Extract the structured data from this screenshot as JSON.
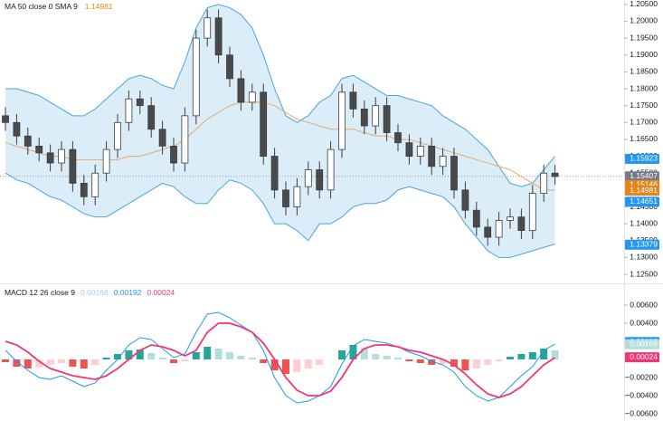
{
  "chart_data": [
    {
      "type": "candlestick",
      "legend_label": "MA 50 close 0 SMA 9",
      "legend_value": "1.14981",
      "legend_value_color": "#e0861c",
      "ylim": [
        1.1226,
        1.2063
      ],
      "yticks": [
        {
          "value": 1.205,
          "label": "1.20500"
        },
        {
          "value": 1.2,
          "label": "1.20000"
        },
        {
          "value": 1.195,
          "label": "1.19500"
        },
        {
          "value": 1.19,
          "label": "1.19000"
        },
        {
          "value": 1.185,
          "label": "1.18500"
        },
        {
          "value": 1.18,
          "label": "1.18000"
        },
        {
          "value": 1.175,
          "label": "1.17500"
        },
        {
          "value": 1.17,
          "label": "1.17000"
        },
        {
          "value": 1.165,
          "label": "1.16500"
        },
        {
          "value": 1.16,
          "label": "1.16000"
        },
        {
          "value": 1.155,
          "label": "1.15500"
        },
        {
          "value": 1.15,
          "label": "1.15000"
        },
        {
          "value": 1.145,
          "label": "1.14500"
        },
        {
          "value": 1.14,
          "label": "1.14000"
        },
        {
          "value": 1.135,
          "label": "1.13500"
        },
        {
          "value": 1.13,
          "label": "1.13000"
        },
        {
          "value": 1.125,
          "label": "1.12500"
        }
      ],
      "open": [
        1.172,
        1.17,
        1.166,
        1.163,
        1.161,
        1.158,
        1.162,
        1.152,
        1.148,
        1.155,
        1.162,
        1.17,
        1.177,
        1.175,
        1.168,
        1.163,
        1.158,
        1.172,
        1.195,
        1.201,
        1.19,
        1.183,
        1.176,
        1.179,
        1.16,
        1.15,
        1.145,
        1.151,
        1.156,
        1.15,
        1.162,
        1.179,
        1.174,
        1.169,
        1.175,
        1.167,
        1.164,
        1.16,
        1.163,
        1.157,
        1.16,
        1.15,
        1.144,
        1.139,
        1.136,
        1.141,
        1.142,
        1.138,
        1.149,
        1.155
      ],
      "high": [
        1.1745,
        1.1725,
        1.1685,
        1.1655,
        1.1635,
        1.1645,
        1.1645,
        1.1545,
        1.1575,
        1.1645,
        1.1725,
        1.1795,
        1.1795,
        1.1775,
        1.1705,
        1.1655,
        1.1745,
        1.1975,
        1.2035,
        1.2035,
        1.1925,
        1.1855,
        1.1815,
        1.1815,
        1.1625,
        1.1525,
        1.1535,
        1.1585,
        1.1585,
        1.1645,
        1.1815,
        1.1815,
        1.1765,
        1.1775,
        1.1775,
        1.1695,
        1.1665,
        1.1655,
        1.1655,
        1.1625,
        1.1625,
        1.1525,
        1.1465,
        1.1415,
        1.1435,
        1.1445,
        1.1445,
        1.1515,
        1.1575,
        1.1575
      ],
      "low": [
        1.1675,
        1.1635,
        1.1605,
        1.1585,
        1.1555,
        1.1555,
        1.1495,
        1.1455,
        1.1455,
        1.1525,
        1.1595,
        1.1675,
        1.1725,
        1.1655,
        1.1605,
        1.1555,
        1.1555,
        1.1695,
        1.1925,
        1.1875,
        1.1805,
        1.1735,
        1.1735,
        1.1575,
        1.1475,
        1.1425,
        1.1425,
        1.1485,
        1.1475,
        1.1475,
        1.1595,
        1.1715,
        1.1665,
        1.1665,
        1.1645,
        1.1615,
        1.1575,
        1.1575,
        1.1545,
        1.1545,
        1.1475,
        1.1415,
        1.1365,
        1.1335,
        1.1335,
        1.1385,
        1.1355,
        1.1355,
        1.1465,
        1.1515
      ],
      "close": [
        1.17,
        1.166,
        1.163,
        1.161,
        1.158,
        1.162,
        1.152,
        1.148,
        1.155,
        1.162,
        1.17,
        1.177,
        1.175,
        1.168,
        1.163,
        1.158,
        1.172,
        1.195,
        1.201,
        1.19,
        1.183,
        1.176,
        1.179,
        1.16,
        1.15,
        1.145,
        1.151,
        1.156,
        1.15,
        1.162,
        1.179,
        1.174,
        1.169,
        1.175,
        1.167,
        1.164,
        1.16,
        1.163,
        1.157,
        1.16,
        1.15,
        1.144,
        1.139,
        1.136,
        1.141,
        1.142,
        1.138,
        1.149,
        1.155,
        1.154
      ],
      "up_color": "#ffffff",
      "down_color": "#4a4a4a",
      "wick_color": "#3c3c3c",
      "band_color": "#4aa3df",
      "band_fill": "#dcedfa",
      "upper": [
        1.18,
        1.18,
        1.179,
        1.178,
        1.176,
        1.174,
        1.172,
        1.172,
        1.174,
        1.177,
        1.18,
        1.183,
        1.184,
        1.183,
        1.181,
        1.18,
        1.188,
        1.198,
        1.204,
        1.205,
        1.204,
        1.202,
        1.198,
        1.19,
        1.18,
        1.172,
        1.17,
        1.172,
        1.176,
        1.178,
        1.183,
        1.184,
        1.182,
        1.18,
        1.178,
        1.178,
        1.177,
        1.176,
        1.175,
        1.172,
        1.17,
        1.168,
        1.165,
        1.162,
        1.157,
        1.152,
        1.151,
        1.152,
        1.156,
        1.16
      ],
      "lower": [
        1.155,
        1.153,
        1.152,
        1.15,
        1.148,
        1.147,
        1.145,
        1.143,
        1.142,
        1.142,
        1.144,
        1.146,
        1.148,
        1.15,
        1.152,
        1.151,
        1.148,
        1.146,
        1.146,
        1.15,
        1.153,
        1.152,
        1.15,
        1.146,
        1.14,
        1.14,
        1.138,
        1.135,
        1.14,
        1.14,
        1.142,
        1.145,
        1.146,
        1.146,
        1.147,
        1.15,
        1.151,
        1.15,
        1.149,
        1.148,
        1.145,
        1.14,
        1.136,
        1.132,
        1.13,
        1.13,
        1.131,
        1.132,
        1.133,
        1.134
      ],
      "ma_color": "#e8a86b",
      "ma": [
        1.164,
        1.163,
        1.162,
        1.161,
        1.16,
        1.16,
        1.159,
        1.159,
        1.159,
        1.159,
        1.159,
        1.16,
        1.16,
        1.161,
        1.162,
        1.163,
        1.165,
        1.168,
        1.171,
        1.173,
        1.175,
        1.176,
        1.176,
        1.176,
        1.175,
        1.173,
        1.171,
        1.17,
        1.169,
        1.168,
        1.168,
        1.168,
        1.167,
        1.166,
        1.166,
        1.165,
        1.165,
        1.164,
        1.163,
        1.162,
        1.161,
        1.16,
        1.159,
        1.158,
        1.157,
        1.156,
        1.154,
        1.152,
        1.15,
        1.15
      ],
      "last_price_line": 1.15407,
      "price_tags": [
        {
          "value": 1.15923,
          "label": "1.15923",
          "color": "#2196f3"
        },
        {
          "value": 1.15407,
          "label": "1.15407",
          "color": "#787b86"
        },
        {
          "value": 1.15146,
          "label": "1.15146",
          "color": "#e0861c"
        },
        {
          "value": 1.14981,
          "label": "1.14981",
          "color": "#e0861c"
        },
        {
          "value": 1.14651,
          "label": "1.14651",
          "color": "#2196f3"
        },
        {
          "value": 1.13379,
          "label": "1.13379",
          "color": "#2196f3"
        }
      ]
    },
    {
      "type": "macd",
      "legend_label": "MACD 12 26 close 9",
      "legend_values": [
        {
          "label": "0.00168",
          "color": "#9fd0e8"
        },
        {
          "label": "0.00192",
          "color": "#2196f3"
        },
        {
          "label": "0.00024",
          "color": "#f23672"
        }
      ],
      "ylim": [
        -0.0068,
        0.0081
      ],
      "yticks": [
        {
          "value": 0.006,
          "label": "0.00600"
        },
        {
          "value": 0.004,
          "label": "0.00400"
        },
        {
          "value": 0.002,
          "label": "0.00200"
        },
        {
          "value": 0,
          "label": "0.00000"
        },
        {
          "value": -0.002,
          "label": "−0.00200"
        },
        {
          "value": -0.004,
          "label": "−0.00400"
        },
        {
          "value": -0.006,
          "label": "−0.00600"
        }
      ],
      "histogram": [
        -0.0003,
        -0.0008,
        -0.001,
        -0.0009,
        -0.0006,
        -0.0004,
        -0.0008,
        -0.001,
        -0.0006,
        0.0002,
        0.0006,
        0.001,
        0.0011,
        0.0007,
        0.0002,
        -0.0004,
        -0.0002,
        0.0008,
        0.0014,
        0.0012,
        0.0008,
        0.0004,
        0.0002,
        -0.0004,
        -0.0012,
        -0.0016,
        -0.0014,
        -0.001,
        -0.0006,
        0.0,
        0.001,
        0.0016,
        0.0012,
        0.0006,
        0.0004,
        0.0002,
        -0.0002,
        -0.0004,
        -0.0006,
        -0.0005,
        -0.0008,
        -0.0012,
        -0.001,
        -0.0006,
        -0.0002,
        0.0003,
        0.0006,
        0.0008,
        0.0012,
        0.001
      ],
      "hist_colors": {
        "pos_grow": "#26a69a",
        "pos_fall": "#b2dfdb",
        "neg_grow": "#ef5350",
        "neg_fall": "#ffcdd2"
      },
      "macd_color": "#2196f3",
      "macd": [
        0.001,
        -0.0002,
        -0.0012,
        -0.002,
        -0.0022,
        -0.0018,
        -0.0024,
        -0.003,
        -0.0026,
        -0.0012,
        0.0,
        0.0016,
        0.0024,
        0.0022,
        0.0012,
        0.0002,
        0.0006,
        0.003,
        0.005,
        0.0052,
        0.0046,
        0.0038,
        0.003,
        0.001,
        -0.002,
        -0.004,
        -0.0048,
        -0.0046,
        -0.004,
        -0.003,
        -0.0005,
        0.0015,
        0.0022,
        0.002,
        0.0018,
        0.0014,
        0.0008,
        0.0004,
        -0.0002,
        -0.0006,
        -0.0014,
        -0.003,
        -0.004,
        -0.0046,
        -0.0042,
        -0.003,
        -0.0018,
        -0.0008,
        0.001,
        0.0017
      ],
      "signal_color": "#f23672",
      "signal": [
        0.002,
        0.0016,
        0.0008,
        -0.0002,
        -0.001,
        -0.0014,
        -0.0018,
        -0.002,
        -0.0022,
        -0.0018,
        -0.001,
        0.0,
        0.001,
        0.0016,
        0.0014,
        0.001,
        0.0004,
        0.001,
        0.003,
        0.004,
        0.004,
        0.0036,
        0.003,
        0.0018,
        0.0,
        -0.002,
        -0.0034,
        -0.004,
        -0.004,
        -0.0035,
        -0.002,
        0.0,
        0.0012,
        0.0016,
        0.0016,
        0.0014,
        0.001,
        0.0008,
        0.0004,
        0.0,
        -0.0006,
        -0.0016,
        -0.0028,
        -0.0038,
        -0.0042,
        -0.0038,
        -0.003,
        -0.0018,
        -0.0006,
        0.0002
      ],
      "price_tags": [
        {
          "value": 0.00192,
          "label": "0.00192",
          "color": "#2196f3"
        },
        {
          "value": 0.00168,
          "label": "0.00168",
          "color": "#b2dfdb"
        },
        {
          "value": 0.00024,
          "label": "0.00024",
          "color": "#f23672"
        }
      ]
    }
  ]
}
